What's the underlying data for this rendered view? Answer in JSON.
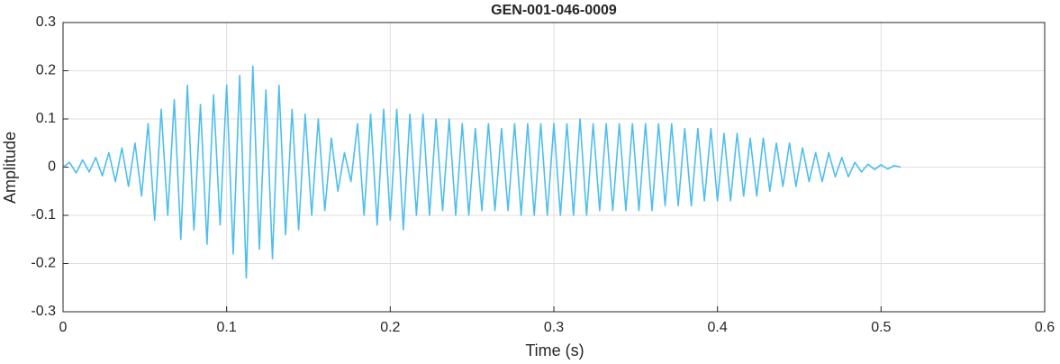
{
  "chart_data": {
    "type": "line",
    "title": "GEN-001-046-0009",
    "xlabel": "Time (s)",
    "ylabel": "Amplitude",
    "x": [
      0,
      0.004,
      0.008,
      0.012,
      0.016,
      0.02,
      0.024,
      0.028,
      0.032,
      0.036,
      0.04,
      0.044,
      0.048,
      0.052,
      0.056,
      0.06,
      0.064,
      0.068,
      0.072,
      0.076,
      0.08,
      0.084,
      0.088,
      0.092,
      0.096,
      0.1,
      0.104,
      0.108,
      0.112,
      0.116,
      0.12,
      0.124,
      0.128,
      0.132,
      0.136,
      0.14,
      0.144,
      0.148,
      0.152,
      0.156,
      0.16,
      0.164,
      0.168,
      0.172,
      0.176,
      0.18,
      0.184,
      0.188,
      0.192,
      0.196,
      0.2,
      0.204,
      0.208,
      0.212,
      0.216,
      0.22,
      0.224,
      0.228,
      0.232,
      0.236,
      0.24,
      0.244,
      0.248,
      0.252,
      0.256,
      0.26,
      0.264,
      0.268,
      0.272,
      0.276,
      0.28,
      0.284,
      0.288,
      0.292,
      0.296,
      0.3,
      0.304,
      0.308,
      0.312,
      0.316,
      0.32,
      0.324,
      0.328,
      0.332,
      0.336,
      0.34,
      0.344,
      0.348,
      0.352,
      0.356,
      0.36,
      0.364,
      0.368,
      0.372,
      0.376,
      0.38,
      0.384,
      0.388,
      0.392,
      0.396,
      0.4,
      0.404,
      0.408,
      0.412,
      0.416,
      0.42,
      0.424,
      0.428,
      0.432,
      0.436,
      0.44,
      0.444,
      0.448,
      0.452,
      0.456,
      0.46,
      0.464,
      0.468,
      0.472,
      0.476,
      0.48,
      0.484,
      0.488,
      0.492,
      0.496,
      0.5,
      0.504,
      0.508,
      0.512
    ],
    "values": [
      0,
      0.01,
      -0.012,
      0.015,
      -0.01,
      0.02,
      -0.018,
      0.03,
      -0.03,
      0.04,
      -0.04,
      0.05,
      -0.06,
      0.09,
      -0.11,
      0.12,
      -0.1,
      0.14,
      -0.15,
      0.17,
      -0.13,
      0.13,
      -0.16,
      0.15,
      -0.12,
      0.17,
      -0.18,
      0.19,
      -0.23,
      0.21,
      -0.17,
      0.16,
      -0.19,
      0.17,
      -0.14,
      0.12,
      -0.13,
      0.11,
      -0.1,
      0.1,
      -0.09,
      0.06,
      -0.05,
      0.03,
      -0.03,
      0.09,
      -0.1,
      0.11,
      -0.12,
      0.12,
      -0.11,
      0.12,
      -0.13,
      0.11,
      -0.1,
      0.11,
      -0.1,
      0.1,
      -0.09,
      0.1,
      -0.1,
      0.09,
      -0.1,
      0.08,
      -0.09,
      0.09,
      -0.09,
      0.08,
      -0.09,
      0.09,
      -0.1,
      0.09,
      -0.1,
      0.09,
      -0.1,
      0.09,
      -0.1,
      0.09,
      -0.1,
      0.1,
      -0.1,
      0.09,
      -0.09,
      0.09,
      -0.09,
      0.09,
      -0.09,
      0.09,
      -0.09,
      0.09,
      -0.09,
      0.09,
      -0.08,
      0.09,
      -0.08,
      0.08,
      -0.08,
      0.08,
      -0.07,
      0.08,
      -0.07,
      0.07,
      -0.07,
      0.07,
      -0.06,
      0.06,
      -0.06,
      0.06,
      -0.05,
      0.05,
      -0.04,
      0.05,
      -0.04,
      0.04,
      -0.03,
      0.03,
      -0.03,
      0.03,
      -0.02,
      0.02,
      -0.02,
      0.01,
      -0.01,
      0.006,
      -0.005,
      0.005,
      -0.004,
      0.003,
      0
    ],
    "color": "#4dbeee",
    "xlim": [
      0,
      0.6
    ],
    "xticks": [
      0,
      0.1,
      0.2,
      0.3,
      0.4,
      0.5,
      0.6
    ],
    "ylim": [
      -0.3,
      0.3
    ],
    "yticks": [
      -0.3,
      -0.2,
      -0.1,
      0,
      0.1,
      0.2,
      0.3
    ],
    "grid": true
  }
}
